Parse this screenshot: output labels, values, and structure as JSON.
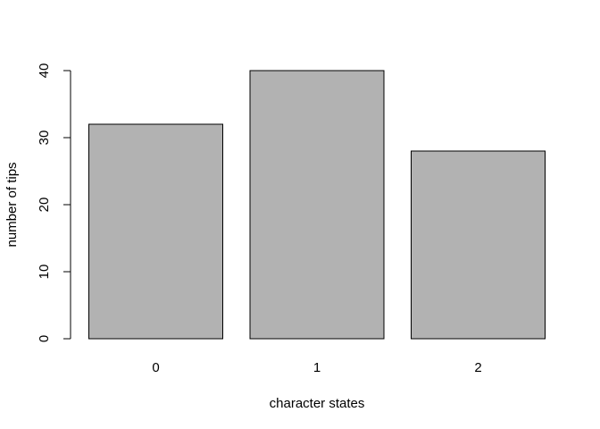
{
  "chart_data": {
    "type": "bar",
    "categories": [
      "0",
      "1",
      "2"
    ],
    "values": [
      32,
      40,
      28
    ],
    "title": "",
    "xlabel": "character states",
    "ylabel": "number of tips",
    "ylim": [
      0,
      40
    ],
    "yticks": [
      0,
      10,
      20,
      30,
      40
    ],
    "grid": false,
    "legend": "none",
    "bar_color": "#b2b2b2",
    "bar_border_color": "#000000"
  }
}
